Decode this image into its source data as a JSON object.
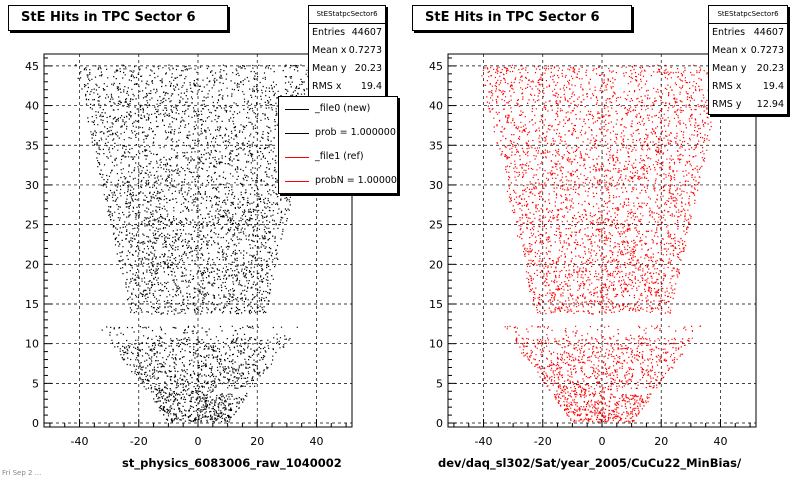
{
  "footer_text": "Fri Sep 2 ...",
  "legend": {
    "items": [
      {
        "label": "_file0 (new)",
        "color": "#000000"
      },
      {
        "label": "prob = 1.000000",
        "color": "#000000"
      },
      {
        "label": "_file1 (ref)",
        "color": "#ff0000"
      },
      {
        "label": "probN = 1.000000",
        "color": "#ff0000"
      }
    ]
  },
  "pads": [
    {
      "title": "StE Hits in TPC Sector 6",
      "caption": "st_physics_6083006_raw_1040002",
      "stats": {
        "name": "StEStatpcSector6",
        "rows": [
          {
            "label": "Entries",
            "value": "44607"
          },
          {
            "label": "Mean x",
            "value": "0.7273"
          },
          {
            "label": "Mean y",
            "value": "20.23"
          },
          {
            "label": "RMS x",
            "value": "19.4"
          }
        ]
      }
    },
    {
      "title": "StE Hits in TPC Sector 6",
      "caption": "dev/daq_sl302/Sat/year_2005/CuCu22_MinBias/",
      "stats": {
        "name": "StEStatpcSector6",
        "rows": [
          {
            "label": "Entries",
            "value": "44607"
          },
          {
            "label": "Mean x",
            "value": "0.7273"
          },
          {
            "label": "Mean y",
            "value": "20.23"
          },
          {
            "label": "RMS x",
            "value": "19.4"
          },
          {
            "label": "RMS y",
            "value": "12.94"
          }
        ]
      }
    }
  ],
  "chart_data": [
    {
      "type": "scatter",
      "title": "StE Hits in TPC Sector 6",
      "xlabel": "st_physics_6083006_raw_1040002",
      "ylabel": "",
      "xlim": [
        -52,
        52
      ],
      "ylim": [
        -0.5,
        46.5
      ],
      "xticks": [
        -40,
        -20,
        0,
        20,
        40
      ],
      "yticks": [
        0,
        5,
        10,
        15,
        20,
        25,
        30,
        35,
        40,
        45
      ],
      "grid": true,
      "legend_position": "top-right",
      "series": [
        {
          "name": "_file0 (new)",
          "color": "#000000",
          "values": "sector-shaped hit distribution, y from 0 to 45"
        }
      ],
      "entries": 44607,
      "mean_x": 0.7273,
      "mean_y": 20.23,
      "rms_x": 19.4
    },
    {
      "type": "scatter",
      "title": "StE Hits in TPC Sector 6",
      "xlabel": "dev/daq_sl302/Sat/year_2005/CuCu22_MinBias/",
      "ylabel": "",
      "xlim": [
        -52,
        52
      ],
      "ylim": [
        -0.5,
        46.5
      ],
      "xticks": [
        -40,
        -20,
        0,
        20,
        40
      ],
      "yticks": [
        0,
        5,
        10,
        15,
        20,
        25,
        30,
        35,
        40,
        45
      ],
      "grid": true,
      "series": [
        {
          "name": "_file1 (ref)",
          "color": "#ff0000",
          "values": "sector-shaped hit distribution, y from 0 to 45"
        }
      ],
      "entries": 44607,
      "mean_x": 0.7273,
      "mean_y": 20.23,
      "rms_x": 19.4,
      "rms_y": 12.94
    }
  ]
}
